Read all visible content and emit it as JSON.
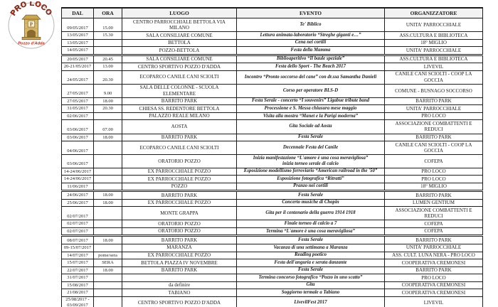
{
  "logo": {
    "title": "PRO LOCO",
    "subtitle": "Pozzo d'Adda",
    "icon": "well-icon",
    "colors": {
      "text_red": "#d42408",
      "well_tan": "#d8b765",
      "well_outline": "#6b4f1d"
    }
  },
  "table": {
    "headers": [
      "DAL",
      "ORA",
      "LUOGO",
      "EVENTO",
      "ORGANIZZATORE"
    ],
    "rows": [
      {
        "dal": "09/05/2017",
        "ora": "15.00",
        "luogo": "CENTRO PARROCCHIALE BETTOLA VIA MILANO",
        "evento": "Te' Biblico",
        "org": "UNITA' PARROCCHIALE"
      },
      {
        "dal": "13/05/2017",
        "ora": "15.30",
        "luogo": "SALA CONSILIARE COMUNE",
        "evento": "Lettura animata-laboratorio “Streghe giganti e…”",
        "org": "ASS.CULTURA E BIBLIOTECA"
      },
      {
        "dal": "13/05/2017",
        "ora": "",
        "luogo": "BETTOLA",
        "evento": "Cena nei cortili",
        "org": "18° MIGLIO"
      },
      {
        "dal": "14/05/2017",
        "ora": "",
        "luogo": "POZZO-BETTOLA",
        "evento": "Festa della Mamma",
        "org": "UNITA' PARROCCHIALE"
      },
      {
        "dal": "20/05/2017",
        "ora": "20.45",
        "luogo": "SALA CONSILIARE COMUNE",
        "evento": "Biblioaperitivo “Il baule speziale”",
        "org": "ASS.CULTURA E BIBLIOTECA",
        "sep": true
      },
      {
        "dal": "20-21/05/2017",
        "ora": "13.00",
        "luogo": "CENTRO SPORTIVO POZZO D'ADDA",
        "evento": "Festa dello Sport - The Beach 2017",
        "org": "LIVEVIL"
      },
      {
        "dal": "24/05/2017",
        "ora": "20.30",
        "luogo": "ECOPARCO CANILE CANI SCIOLTI",
        "evento": "Incontro “Pronto soccorso del cane” con dr.ssa Samantha Danieli",
        "org": "CANILE CANI SCIOLTI - COOP LA GOCCIA"
      },
      {
        "dal": "27/05/2017",
        "ora": "9.00",
        "luogo": "SALA DELLE COLONNE - SCUOLA ELEMENTARE",
        "evento": "Corso per operatore BLS-D",
        "org": "COMUNE - BUSNAGO SOCCORSO"
      },
      {
        "dal": "27/05/2017",
        "ora": "18.00",
        "luogo": "BARRITO PARK",
        "evento": "Festa Serale - concerto “I souvenirs” Ligabue tribute band",
        "org": "BARRITO PARK"
      },
      {
        "dal": "31/05/2017",
        "ora": "20.30",
        "luogo": "CHIESA SS. REDENTORE BETTOLA",
        "evento": "Processione e S. Messa chiusura mese maggio",
        "org": "UNITA' PARROCCHIALE"
      },
      {
        "dal": "02/06/2017",
        "ora": "",
        "luogo": "PALAZZO REALE MILANO",
        "evento": "Visita alla mostra “Manet e la Parigi moderna”",
        "org": "PRO LOCO"
      },
      {
        "dal": "03/06/2017",
        "ora": "07.00",
        "luogo": "AOSTA",
        "evento": "Gita Sociale ad Aosta",
        "org": "ASSOCIAZIONE COMBATTENTI E REDUCI"
      },
      {
        "dal": "03/06/2017",
        "ora": "18.00",
        "luogo": "BARRITO PARK",
        "evento": "Festa Serale",
        "org": "BARRITO PARK"
      },
      {
        "dal": "04/06/2017",
        "ora": "",
        "luogo": "ECOPARCO CANILE CANI SCIOLTI",
        "evento": "Decennale Festa del Canile",
        "org": "CANILE CANI SCIOLTI - COOP LA GOCCIA"
      },
      {
        "dal": "03/06/2017",
        "ora": "",
        "luogo": "ORATORIO POZZO",
        "evento": "Inizia manifestazione “L'amore è una cosa meravigliosa”\ninizia torneo serale di calcio",
        "org": "COFEPA"
      },
      {
        "dal": "14-24/06/2017",
        "ora": "",
        "luogo": "EX PARROCCHIALE POZZO",
        "evento": "Esposizione modellismo ferroviario “American railroad in the '50”",
        "org": "PRO LOCO"
      },
      {
        "dal": "14-24/06/2017",
        "ora": "",
        "luogo": "EX PARROCCHIALE POZZO",
        "evento": "Esposizione fotografica “Ritratti”",
        "org": "PRO LOCO"
      },
      {
        "dal": "11/06/2017",
        "ora": "",
        "luogo": "POZZO",
        "evento": "Pranzo nei cortili",
        "org": "18° MIGLIO"
      },
      {
        "dal": "24/06/2017",
        "ora": "18.00",
        "luogo": "BARRITO PARK",
        "evento": "Festa Serale",
        "org": "BARRITO PARK",
        "sep": true
      },
      {
        "dal": "25/06/2017",
        "ora": "18.00",
        "luogo": "EX PARROCCHIALE POZZO",
        "evento": "Concerto musiche di Chopin",
        "org": "LUMEN GENTIUM"
      },
      {
        "dal": "02/07/2017",
        "ora": "",
        "luogo": "MONTE GRAPPA",
        "evento": "Gita per il centenario della guerra 1914 1918",
        "org": "ASSOCIAZIONE COMBATTENTI E REDUCI"
      },
      {
        "dal": "02/07/2017",
        "ora": "",
        "luogo": "ORATORIO POZZO",
        "evento": "Finale torneo di calcio a 7",
        "org": "COFEPA"
      },
      {
        "dal": "02/07/2017",
        "ora": "",
        "luogo": "ORATORIO POZZO",
        "evento": "Termina “L'amore è una cosa meravigliosa”",
        "org": "COFEPA"
      },
      {
        "dal": "08/07/2017",
        "ora": "18.00",
        "luogo": "BARRITO PARK",
        "evento": "Festa Serale",
        "org": "BARRITO PARK",
        "sep": true
      },
      {
        "dal": "09-15/07/2017",
        "ora": "",
        "luogo": "MARANZA",
        "evento": "Vacanza di una settimana a Maranza",
        "org": "UNITA' PARROCCHIALE"
      },
      {
        "dal": "14/07/2017",
        "ora": "pome/sera",
        "luogo": "EX PARROCCHIALE POZZO",
        "evento": "Reading poetico",
        "org": "ASS. CULT. LUNA NERA - PRO LOCO"
      },
      {
        "dal": "15/07/2017",
        "ora": "SERA",
        "luogo": "BETTOLA PIAZZA IV NOVEMBRE",
        "evento": "Festa dell'anguria e serata danzante",
        "org": "COOPERATIVA CREMONESI"
      },
      {
        "dal": "22/07/2017",
        "ora": "18.00",
        "luogo": "BARRITO PARK",
        "evento": "Festa Serale",
        "org": "BARRITO PARK"
      },
      {
        "dal": "31/07/2017",
        "ora": "",
        "luogo": "",
        "evento": "Termina concorso fotografico “Pozzo in uno scatto”",
        "org": "PRO LOCO"
      },
      {
        "dal": "15/08/2017",
        "ora": "",
        "luogo": "da definire",
        "evento": "Gita",
        "org": "COOPERATIVA CREMONESI"
      },
      {
        "dal": "21/08/2017",
        "ora": "",
        "luogo": "TABIANO",
        "evento": "Soggiorno termale a Tabiano",
        "org": "COOPERATIVA CREMONESI"
      },
      {
        "dal": "25/08/2017 - 03/09/2017",
        "ora": "",
        "luogo": "CENTRO SPORTIVO POZZO D'ADDA",
        "evento": "LivevilFest 2017",
        "org": "LIVEVIL"
      }
    ]
  }
}
